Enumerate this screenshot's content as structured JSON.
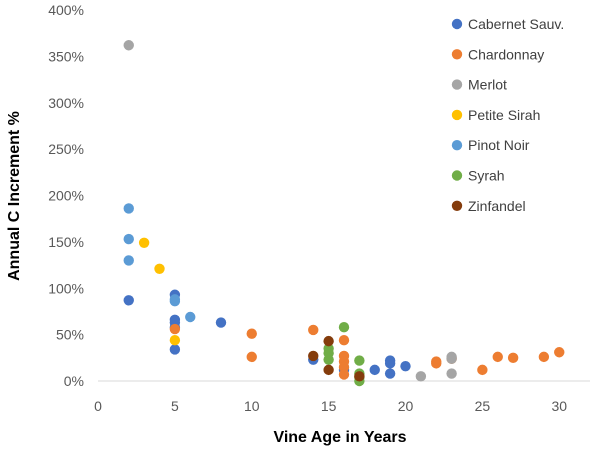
{
  "chart_data": {
    "type": "scatter",
    "title": "",
    "xlabel": "Vine Age in Years",
    "ylabel": "Annual C Increment %",
    "xlim": [
      0,
      32
    ],
    "ylim": [
      0,
      400
    ],
    "x_ticks": [
      0,
      5,
      10,
      15,
      20,
      25,
      30
    ],
    "y_ticks": [
      0,
      50,
      100,
      150,
      200,
      250,
      300,
      350,
      400
    ],
    "x_tick_labels": [
      "0",
      "5",
      "10",
      "15",
      "20",
      "25",
      "30"
    ],
    "y_tick_labels": [
      "0%",
      "50%",
      "100%",
      "150%",
      "200%",
      "250%",
      "300%",
      "350%",
      "400%"
    ],
    "grid": false,
    "legend_position": "top-right",
    "series": [
      {
        "name": "Cabernet Sauv.",
        "color": "#4472C4",
        "points": [
          [
            2,
            87
          ],
          [
            5,
            93
          ],
          [
            5,
            66
          ],
          [
            5,
            63
          ],
          [
            5,
            58
          ],
          [
            5,
            34
          ],
          [
            8,
            63
          ],
          [
            14,
            23
          ],
          [
            16,
            12
          ],
          [
            18,
            12
          ],
          [
            19,
            22
          ],
          [
            19,
            19
          ],
          [
            19,
            8
          ],
          [
            20,
            16
          ]
        ]
      },
      {
        "name": "Chardonnay",
        "color": "#ED7D31",
        "points": [
          [
            5,
            56
          ],
          [
            10,
            51
          ],
          [
            10,
            26
          ],
          [
            14,
            55
          ],
          [
            16,
            44
          ],
          [
            16,
            27
          ],
          [
            16,
            21
          ],
          [
            16,
            15
          ],
          [
            16,
            7
          ],
          [
            22,
            21
          ],
          [
            22,
            19
          ],
          [
            23,
            24
          ],
          [
            25,
            12
          ],
          [
            26,
            26
          ],
          [
            27,
            25
          ],
          [
            29,
            26
          ],
          [
            30,
            31
          ]
        ]
      },
      {
        "name": "Merlot",
        "color": "#A5A5A5",
        "points": [
          [
            2,
            362
          ],
          [
            21,
            5
          ],
          [
            23,
            26
          ],
          [
            23,
            24
          ],
          [
            23,
            8
          ]
        ]
      },
      {
        "name": "Petite Sirah",
        "color": "#FFC000",
        "points": [
          [
            3,
            149
          ],
          [
            4,
            121
          ],
          [
            5,
            44
          ]
        ]
      },
      {
        "name": "Pinot Noir",
        "color": "#5B9BD5",
        "points": [
          [
            2,
            186
          ],
          [
            2,
            153
          ],
          [
            2,
            130
          ],
          [
            5,
            88
          ],
          [
            5,
            86
          ],
          [
            6,
            69
          ]
        ]
      },
      {
        "name": "Syrah",
        "color": "#70AD47",
        "points": [
          [
            15,
            35
          ],
          [
            15,
            30
          ],
          [
            15,
            23
          ],
          [
            16,
            58
          ],
          [
            17,
            22
          ],
          [
            17,
            8
          ],
          [
            17,
            4
          ],
          [
            17,
            0
          ]
        ]
      },
      {
        "name": "Zinfandel",
        "color": "#843C0C",
        "points": [
          [
            14,
            27
          ],
          [
            15,
            43
          ],
          [
            15,
            12
          ],
          [
            17,
            5
          ]
        ]
      }
    ]
  }
}
